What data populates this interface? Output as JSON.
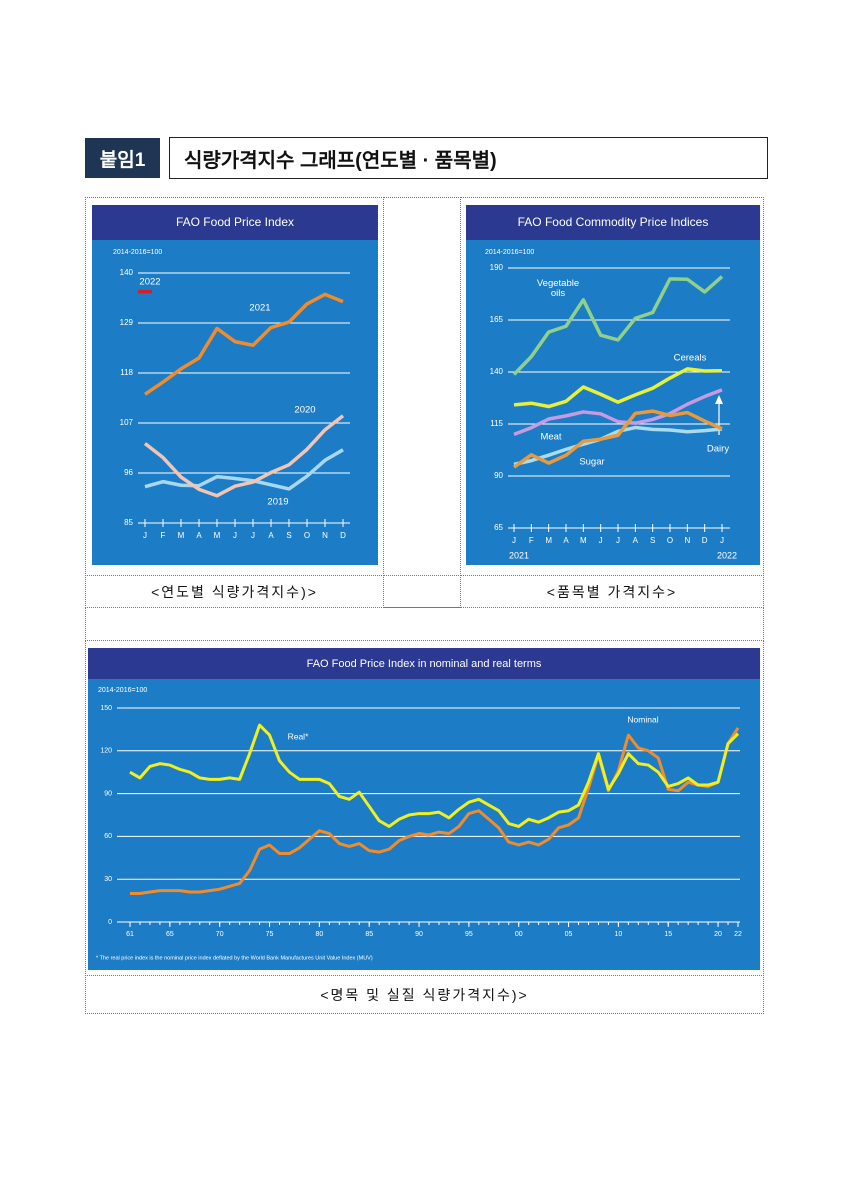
{
  "header": {
    "tag": "붙임1",
    "title": "식량가격지수 그래프(연도별 · 품목별)"
  },
  "captions": [
    "<연도별 식량가격지수)>",
    "<품목별 가격지수>",
    "<명목 및 실질 식량가격지수)>"
  ],
  "chart_data": [
    {
      "type": "line",
      "title": "FAO Food Price Index",
      "subtitle": "2014-2016=100",
      "categories": [
        "J",
        "F",
        "M",
        "A",
        "M",
        "J",
        "J",
        "A",
        "S",
        "O",
        "N",
        "D"
      ],
      "ylim": [
        85,
        140
      ],
      "yticks": [
        85,
        96,
        107,
        118,
        129,
        140
      ],
      "grid": true,
      "series": [
        {
          "name": "2019",
          "color": "#a8d8f0",
          "values": [
            93.0,
            94.1,
            93.3,
            93.2,
            95.2,
            94.8,
            94.3,
            93.4,
            92.5,
            95.3,
            98.8,
            101.1
          ]
        },
        {
          "name": "2020",
          "color": "#f4c4b4",
          "values": [
            102.5,
            99.4,
            95.1,
            92.4,
            91.0,
            93.1,
            94.0,
            96.1,
            97.8,
            101.2,
            105.5,
            108.6
          ]
        },
        {
          "name": "2021",
          "color": "#f08c2c",
          "values": [
            113.3,
            116.0,
            118.9,
            121.3,
            127.8,
            124.9,
            124.1,
            128.0,
            129.2,
            133.2,
            135.3,
            133.7
          ]
        },
        {
          "name": "2022",
          "color": "#d2202a",
          "values": [
            135.9,
            null,
            null,
            null,
            null,
            null,
            null,
            null,
            null,
            null,
            null,
            null
          ]
        }
      ]
    },
    {
      "type": "line",
      "title": "FAO Food Commodity Price Indices",
      "subtitle": "2014-2016=100",
      "categories": [
        "J",
        "F",
        "M",
        "A",
        "M",
        "J",
        "J",
        "A",
        "S",
        "O",
        "N",
        "D",
        "J"
      ],
      "year_labels": [
        "2021",
        "2022"
      ],
      "ylim": [
        65,
        190
      ],
      "yticks": [
        65,
        90,
        115,
        140,
        165,
        190
      ],
      "grid": true,
      "series": [
        {
          "name": "Vegetable oils",
          "color": "#8fd18a",
          "values": [
            138.8,
            147.4,
            159.2,
            162.0,
            174.7,
            157.7,
            155.4,
            165.8,
            168.6,
            184.8,
            184.6,
            178.5,
            185.9
          ]
        },
        {
          "name": "Cereals",
          "color": "#e8f03a",
          "values": [
            124.2,
            125.0,
            123.4,
            125.9,
            132.8,
            129.3,
            125.5,
            129.0,
            132.2,
            137.1,
            141.5,
            140.5,
            140.6
          ]
        },
        {
          "name": "Dairy",
          "color": "#c89be0",
          "values": [
            110.0,
            113.2,
            117.4,
            118.9,
            120.8,
            119.9,
            116.1,
            115.4,
            117.2,
            120.0,
            124.5,
            128.2,
            131.4
          ]
        },
        {
          "name": "Meat",
          "color": "#a9dcf0",
          "values": [
            95.6,
            97.4,
            100.0,
            102.8,
            105.3,
            107.7,
            111.5,
            113.3,
            112.4,
            112.1,
            111.3,
            111.8,
            112.6
          ]
        },
        {
          "name": "Sugar",
          "color": "#e89a3c",
          "values": [
            94.2,
            100.2,
            96.2,
            100.0,
            106.7,
            107.7,
            109.6,
            120.1,
            121.2,
            119.1,
            120.5,
            116.4,
            112.7
          ]
        }
      ]
    },
    {
      "type": "line",
      "title": "FAO Food Price Index in nominal and real terms",
      "subtitle": "2014-2016=100",
      "note": "* The real price index is the nominal price index deflated by the World Bank Manufactures Unit Value Index (MUV)",
      "x": [
        1961,
        1962,
        1963,
        1964,
        1965,
        1966,
        1967,
        1968,
        1969,
        1970,
        1971,
        1972,
        1973,
        1974,
        1975,
        1976,
        1977,
        1978,
        1979,
        1980,
        1981,
        1982,
        1983,
        1984,
        1985,
        1986,
        1987,
        1988,
        1989,
        1990,
        1991,
        1992,
        1993,
        1994,
        1995,
        1996,
        1997,
        1998,
        1999,
        2000,
        2001,
        2002,
        2003,
        2004,
        2005,
        2006,
        2007,
        2008,
        2009,
        2010,
        2011,
        2012,
        2013,
        2014,
        2015,
        2016,
        2017,
        2018,
        2019,
        2020,
        2021,
        2022
      ],
      "xlim": [
        1961,
        2022
      ],
      "xticks": [
        {
          "value": 1961,
          "label": "61"
        },
        {
          "value": 1965,
          "label": "65"
        },
        {
          "value": 1970,
          "label": "70"
        },
        {
          "value": 1975,
          "label": "75"
        },
        {
          "value": 1980,
          "label": "80"
        },
        {
          "value": 1985,
          "label": "85"
        },
        {
          "value": 1990,
          "label": "90"
        },
        {
          "value": 1995,
          "label": "95"
        },
        {
          "value": 2000,
          "label": "00"
        },
        {
          "value": 2005,
          "label": "05"
        },
        {
          "value": 2010,
          "label": "10"
        },
        {
          "value": 2015,
          "label": "15"
        },
        {
          "value": 2020,
          "label": "20"
        },
        {
          "value": 2022,
          "label": "22"
        }
      ],
      "ylim": [
        0,
        150
      ],
      "yticks": [
        0,
        30,
        60,
        90,
        120,
        150
      ],
      "grid": true,
      "series": [
        {
          "name": "Nominal",
          "color": "#f08c2c",
          "values": [
            20,
            20,
            21,
            22,
            22,
            22,
            21,
            21,
            22,
            23,
            25,
            27,
            36,
            51,
            54,
            48,
            48,
            52,
            58,
            64,
            62,
            55,
            53,
            55,
            50,
            49,
            51,
            57,
            60,
            62,
            61,
            63,
            62,
            67,
            76,
            78,
            72,
            66,
            56,
            54,
            56,
            54,
            58,
            66,
            68,
            73,
            94,
            117,
            92,
            106,
            131,
            122,
            120,
            115,
            93,
            92,
            98,
            96,
            95,
            98,
            125,
            136
          ]
        },
        {
          "name": "Real*",
          "color": "#f0f020",
          "values": [
            105,
            101,
            109,
            111,
            110,
            107,
            105,
            101,
            100,
            100,
            101,
            100,
            118,
            138,
            131,
            113,
            105,
            100,
            100,
            100,
            97,
            88,
            86,
            91,
            81,
            71,
            67,
            72,
            75,
            76,
            76,
            77,
            73,
            79,
            84,
            86,
            82,
            78,
            69,
            67,
            72,
            70,
            73,
            77,
            78,
            82,
            98,
            118,
            93,
            104,
            118,
            111,
            110,
            105,
            95,
            97,
            101,
            96,
            96,
            98,
            125,
            132
          ]
        }
      ]
    }
  ]
}
